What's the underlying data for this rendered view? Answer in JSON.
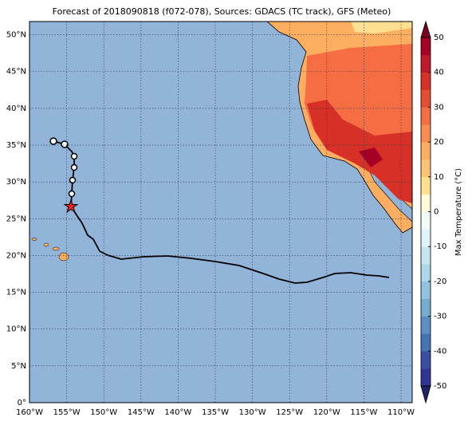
{
  "chart_data": {
    "type": "map",
    "title": "Forecast of 2018090818 (f072-078), Sources: GDACS (TC track), GFS (Meteo)",
    "xlim": [
      -160,
      -108.5
    ],
    "ylim": [
      0,
      51.8
    ],
    "xticks": [
      {
        "value": -160,
        "label": "160°W"
      },
      {
        "value": -155,
        "label": "155°W"
      },
      {
        "value": -150,
        "label": "150°W"
      },
      {
        "value": -145,
        "label": "145°W"
      },
      {
        "value": -140,
        "label": "140°W"
      },
      {
        "value": -135,
        "label": "135°W"
      },
      {
        "value": -130,
        "label": "130°W"
      },
      {
        "value": -125,
        "label": "125°W"
      },
      {
        "value": -120,
        "label": "120°W"
      },
      {
        "value": -115,
        "label": "115°W"
      },
      {
        "value": -110,
        "label": "110°W"
      }
    ],
    "yticks": [
      {
        "value": 0,
        "label": "0°"
      },
      {
        "value": 5,
        "label": "5°N"
      },
      {
        "value": 10,
        "label": "10°N"
      },
      {
        "value": 15,
        "label": "15°N"
      },
      {
        "value": 20,
        "label": "20°N"
      },
      {
        "value": 25,
        "label": "25°N"
      },
      {
        "value": 30,
        "label": "30°N"
      },
      {
        "value": 35,
        "label": "35°N"
      },
      {
        "value": 40,
        "label": "40°N"
      },
      {
        "value": 45,
        "label": "45°N"
      },
      {
        "value": 50,
        "label": "50°N"
      }
    ],
    "grid": true,
    "colorbar": {
      "label": "Max Temperature (°C)",
      "lim": [
        -50,
        50
      ],
      "ticks": [
        -50,
        -40,
        -30,
        -20,
        -10,
        0,
        10,
        20,
        30,
        40,
        50
      ],
      "colors": [
        "#313695",
        "#3a4da0",
        "#4575b4",
        "#5b8fc3",
        "#74add1",
        "#91c3de",
        "#abd9e9",
        "#c7e6f0",
        "#e0f3f8",
        "#f2faf5",
        "#fffbd9",
        "#fee090",
        "#fdc474",
        "#fdae61",
        "#f88d52",
        "#f46d43",
        "#e44f33",
        "#d73027",
        "#be1a2a",
        "#a50026"
      ],
      "under": "#1f2266",
      "over": "#7a0020"
    }
  }
}
